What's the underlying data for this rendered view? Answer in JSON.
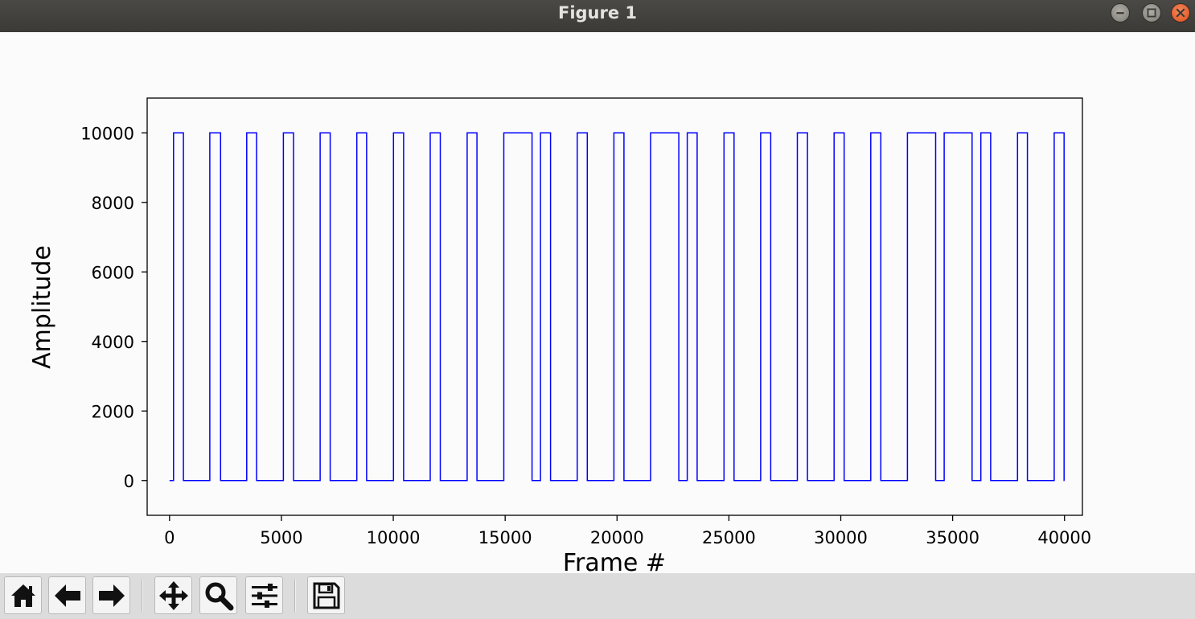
{
  "window": {
    "title": "Figure 1",
    "buttons": [
      "minimize",
      "maximize",
      "close"
    ]
  },
  "toolbar": {
    "buttons": [
      {
        "name": "home",
        "icon": "home-icon"
      },
      {
        "name": "back",
        "icon": "arrow-left-icon"
      },
      {
        "name": "forward",
        "icon": "arrow-right-icon"
      },
      {
        "name": "pan",
        "icon": "move-icon"
      },
      {
        "name": "zoom",
        "icon": "magnifier-icon"
      },
      {
        "name": "configure-subplots",
        "icon": "sliders-icon"
      },
      {
        "name": "save",
        "icon": "floppy-disk-icon"
      }
    ]
  },
  "colors": {
    "line": "#0000ff",
    "titlebar": "#403f3b",
    "toolbar": "#dcdcdc"
  },
  "chart_data": {
    "type": "line",
    "title": "",
    "xlabel": "Frame #",
    "ylabel": "Amplitude",
    "xlim": [
      -1000,
      40800
    ],
    "ylim": [
      -1000,
      11000
    ],
    "xticks": [
      0,
      5000,
      10000,
      15000,
      20000,
      25000,
      30000,
      35000,
      40000
    ],
    "yticks": [
      0,
      2000,
      4000,
      6000,
      8000,
      10000
    ],
    "grid": false,
    "series": [
      {
        "name": "",
        "low": 0,
        "high": 10000,
        "x_start": 0,
        "x_end": 40000,
        "high_intervals": [
          [
            180,
            620
          ],
          [
            1800,
            2280
          ],
          [
            3450,
            3890
          ],
          [
            5090,
            5540
          ],
          [
            6730,
            7180
          ],
          [
            8370,
            8810
          ],
          [
            10010,
            10460
          ],
          [
            11650,
            12100
          ],
          [
            13300,
            13740
          ],
          [
            14940,
            16200
          ],
          [
            16580,
            17030
          ],
          [
            18220,
            18670
          ],
          [
            19860,
            20310
          ],
          [
            21500,
            22760
          ],
          [
            23140,
            23580
          ],
          [
            24780,
            25230
          ],
          [
            26420,
            26870
          ],
          [
            28060,
            28510
          ],
          [
            29700,
            30150
          ],
          [
            31340,
            31790
          ],
          [
            32980,
            34240
          ],
          [
            34620,
            35870
          ],
          [
            36260,
            36700
          ],
          [
            37900,
            38340
          ],
          [
            39540,
            39980
          ]
        ]
      }
    ]
  }
}
